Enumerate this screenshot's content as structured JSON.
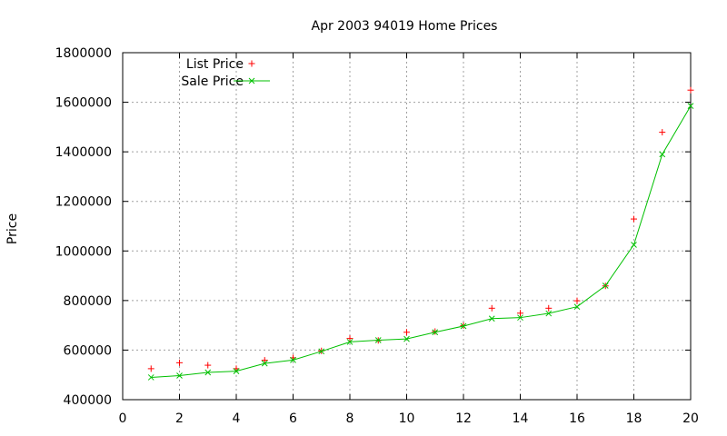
{
  "chart_data": {
    "type": "line",
    "title": "Apr 2003 94019 Home Prices",
    "xlabel": "",
    "ylabel": "Price",
    "xlim": [
      0,
      20
    ],
    "ylim": [
      400000,
      1800000
    ],
    "x_ticks": [
      0,
      2,
      4,
      6,
      8,
      10,
      12,
      14,
      16,
      18,
      20
    ],
    "y_ticks": [
      400000,
      600000,
      800000,
      1000000,
      1200000,
      1400000,
      1600000,
      1800000
    ],
    "grid": true,
    "legend_position": "top-left",
    "series": [
      {
        "name": "List Price",
        "style": "points",
        "marker": "plus",
        "color": "#ff0000",
        "x": [
          1,
          2,
          3,
          4,
          5,
          6,
          7,
          8,
          9,
          10,
          11,
          12,
          13,
          14,
          15,
          16,
          17,
          18,
          19,
          20
        ],
        "values": [
          525000,
          549000,
          539000,
          525000,
          559000,
          569000,
          597000,
          647000,
          639000,
          672000,
          675000,
          699000,
          769000,
          749000,
          769000,
          799000,
          859000,
          1129000,
          1479000,
          1649000
        ]
      },
      {
        "name": "Sale Price",
        "style": "linespoints",
        "marker": "cross",
        "color": "#00c000",
        "x": [
          1,
          2,
          3,
          4,
          5,
          6,
          7,
          8,
          9,
          10,
          11,
          12,
          13,
          14,
          15,
          16,
          17,
          18,
          19,
          20
        ],
        "values": [
          490000,
          497000,
          510000,
          515000,
          546000,
          560000,
          595000,
          633000,
          640000,
          645000,
          672000,
          697000,
          727000,
          731000,
          748000,
          775000,
          860000,
          1025000,
          1390000,
          1585000
        ]
      }
    ]
  }
}
